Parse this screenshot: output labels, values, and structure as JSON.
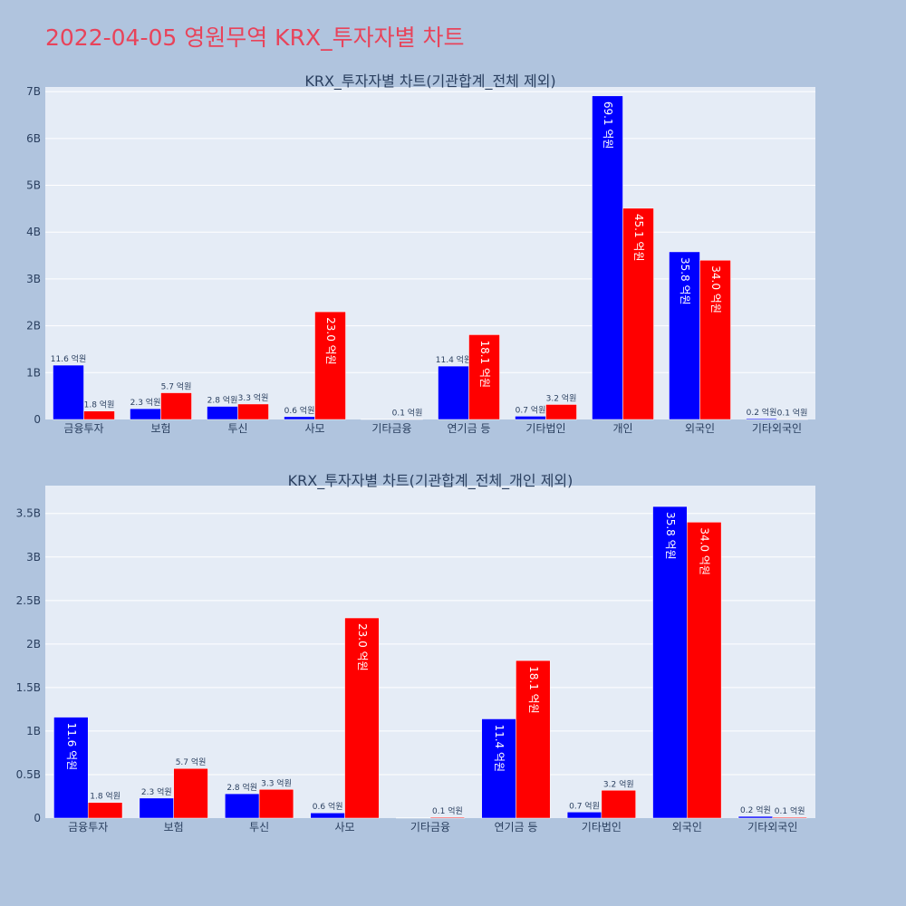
{
  "page_title": "2022-04-05 영원무역 KRX_투자자별 차트",
  "colors": {
    "background": "#b0c4de",
    "plot_bg": "#e5ecf6",
    "series_1": "#0000ff",
    "series_2": "#ff0000",
    "title": "#e8435a",
    "text": "#2a3f5f"
  },
  "chart_data": [
    {
      "type": "bar",
      "title": "KRX_투자자별 차트(기관합계_전체 제외)",
      "categories": [
        "금융투자",
        "보험",
        "투신",
        "사모",
        "기타금융",
        "연기금 등",
        "기타법인",
        "개인",
        "외국인",
        "기타외국인"
      ],
      "series": [
        {
          "values": [
            1160000000,
            230000000,
            280000000,
            60000000,
            0,
            1140000000,
            70000000,
            6910000000,
            3580000000,
            20000000
          ],
          "labels": [
            "11.6 억원",
            "2.3 억원",
            "2.8 억원",
            "0.6 억원",
            "",
            "11.4 억원",
            "0.7 억원",
            "69.1 억원",
            "35.8 억원",
            "0.2 억원"
          ]
        },
        {
          "values": [
            180000000,
            570000000,
            330000000,
            2300000000,
            10000000,
            1810000000,
            320000000,
            4510000000,
            3400000000,
            10000000
          ],
          "labels": [
            "1.8 억원",
            "5.7 억원",
            "3.3 억원",
            "23.0 억원",
            "0.1 억원",
            "18.1 억원",
            "3.2 억원",
            "45.1 억원",
            "34.0 억원",
            "0.1 억원"
          ]
        }
      ],
      "ylim": [
        0,
        7100000000
      ],
      "yticks": [
        0,
        1000000000,
        2000000000,
        3000000000,
        4000000000,
        5000000000,
        6000000000,
        7000000000
      ],
      "ytick_labels": [
        "0",
        "1B",
        "2B",
        "3B",
        "4B",
        "5B",
        "6B",
        "7B"
      ],
      "grid": true
    },
    {
      "type": "bar",
      "title": "KRX_투자자별 차트(기관합계_전체_개인 제외)",
      "categories": [
        "금융투자",
        "보험",
        "투신",
        "사모",
        "기타금융",
        "연기금 등",
        "기타법인",
        "외국인",
        "기타외국인"
      ],
      "series": [
        {
          "values": [
            1160000000,
            230000000,
            280000000,
            60000000,
            0,
            1140000000,
            70000000,
            3580000000,
            20000000
          ],
          "labels": [
            "11.6 억원",
            "2.3 억원",
            "2.8 억원",
            "0.6 억원",
            "",
            "11.4 억원",
            "0.7 억원",
            "35.8 억원",
            "0.2 억원"
          ]
        },
        {
          "values": [
            180000000,
            570000000,
            330000000,
            2300000000,
            10000000,
            1810000000,
            320000000,
            3400000000,
            10000000
          ],
          "labels": [
            "1.8 억원",
            "5.7 억원",
            "3.3 억원",
            "23.0 억원",
            "0.1 억원",
            "18.1 억원",
            "3.2 억원",
            "34.0 억원",
            "0.1 억원"
          ]
        }
      ],
      "ylim": [
        0,
        3820000000
      ],
      "yticks": [
        0,
        500000000,
        1000000000,
        1500000000,
        2000000000,
        2500000000,
        3000000000,
        3500000000
      ],
      "ytick_labels": [
        "0",
        "0.5B",
        "1B",
        "1.5B",
        "2B",
        "2.5B",
        "3B",
        "3.5B"
      ],
      "grid": true
    }
  ]
}
